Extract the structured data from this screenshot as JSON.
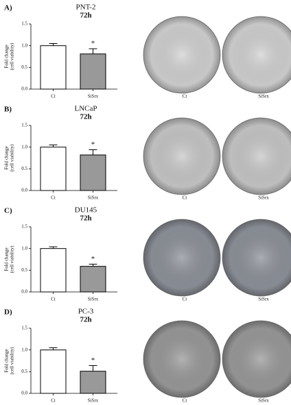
{
  "chart_data": [
    {
      "type": "bar",
      "panel": "A)",
      "title": "PNT-2",
      "subtitle": "72h",
      "y_label": [
        "Fold change",
        "(cell viability)"
      ],
      "categories": [
        "Ct",
        "SiSrx"
      ],
      "values": [
        1.0,
        0.81
      ],
      "errors": [
        0.05,
        0.12
      ],
      "colors": [
        "#ffffff",
        "#999999"
      ],
      "significance": "*",
      "ylim": [
        0,
        1.5
      ],
      "yticks": [
        {
          "value": 0,
          "label": "0.0"
        },
        0.5,
        {
          "value": 1,
          "label": "1.0"
        },
        1.5
      ],
      "image_labels": [
        "Ct",
        "SiSrx"
      ],
      "image_color": "#d2d2d2"
    },
    {
      "type": "bar",
      "panel": "B)",
      "title": "LNCaP",
      "subtitle": "72h",
      "y_label": [
        "Fold change",
        "(cell viability)"
      ],
      "categories": [
        "Ct",
        "SiSrx"
      ],
      "values": [
        1.0,
        0.82
      ],
      "errors": [
        0.05,
        0.12
      ],
      "colors": [
        "#ffffff",
        "#999999"
      ],
      "significance": "*",
      "ylim": [
        0,
        1.5
      ],
      "yticks": [
        {
          "value": 0,
          "label": "0.0"
        },
        0.5,
        {
          "value": 1,
          "label": "1.0"
        },
        1.5
      ],
      "image_labels": [
        "Ct",
        "SiSrx"
      ],
      "image_color": "#c8c8c8"
    },
    {
      "type": "bar",
      "panel": "C)",
      "title": "DU145",
      "subtitle": "72h",
      "y_label": [
        "Fold change",
        "(cell viability)"
      ],
      "categories": [
        "Ct",
        "SiSrx"
      ],
      "values": [
        1.0,
        0.59
      ],
      "errors": [
        0.04,
        0.05
      ],
      "colors": [
        "#ffffff",
        "#999999"
      ],
      "significance": "*",
      "ylim": [
        0,
        1.5
      ],
      "yticks": [
        {
          "value": 0,
          "label": "0.0"
        },
        0.5,
        {
          "value": 1,
          "label": "1.0"
        },
        1.5
      ],
      "image_labels": [
        "Ct",
        "SiSrx"
      ],
      "image_color": "#8e929a"
    },
    {
      "type": "bar",
      "panel": "D)",
      "title": "PC-3",
      "subtitle": "72h",
      "y_label": [
        "Fold change",
        "(cell viability)"
      ],
      "categories": [
        "Ct",
        "SiSrx"
      ],
      "values": [
        1.0,
        0.51
      ],
      "errors": [
        0.05,
        0.13
      ],
      "colors": [
        "#ffffff",
        "#999999"
      ],
      "significance": "*",
      "ylim": [
        0,
        1.5
      ],
      "yticks": [
        {
          "value": 0,
          "label": "0.0"
        },
        0.5,
        {
          "value": 1,
          "label": "1.0"
        },
        1.5
      ],
      "image_labels": [
        "Ct",
        "SiSrx"
      ],
      "image_color": "#9a9a9a"
    }
  ]
}
